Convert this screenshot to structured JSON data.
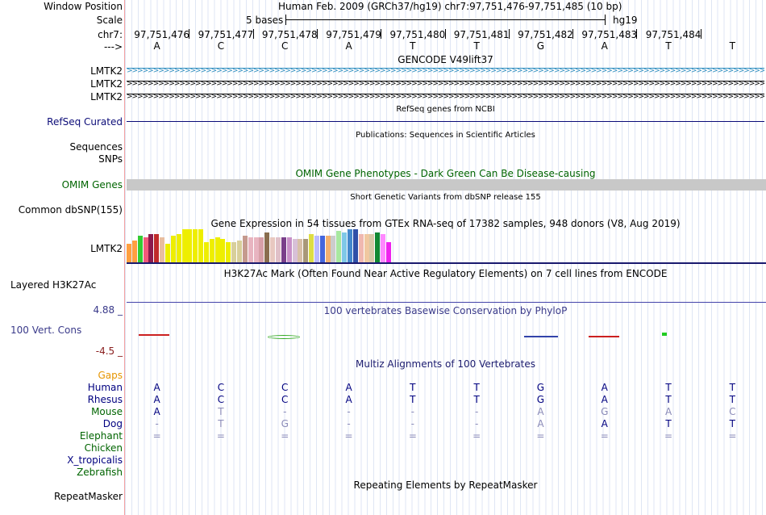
{
  "header": {
    "window_position_label": "Window Position",
    "window_position_value": "Human Feb. 2009 (GRCh37/hg19)   chr7:97,751,476-97,751,485 (10 bp)",
    "scale_label": "Scale",
    "scale_bases": "5 bases",
    "scale_assembly": "hg19",
    "chrom_label": "chr7:",
    "arrow_label": "--->",
    "positions": [
      "97,751,476",
      "97,751,477",
      "97,751,478",
      "97,751,479",
      "97,751,480",
      "97,751,481",
      "97,751,482",
      "97,751,483",
      "97,751,484"
    ],
    "bases": [
      "A",
      "C",
      "C",
      "A",
      "T",
      "T",
      "G",
      "A",
      "T",
      "T"
    ]
  },
  "tracks": {
    "gencode": {
      "title": "GENCODE V49lift37",
      "labels": [
        "LMTK2",
        "LMTK2",
        "LMTK2"
      ],
      "colors": [
        "#2b8cbe",
        "#000000",
        "#000000"
      ]
    },
    "refseq": {
      "title": "RefSeq genes from NCBI",
      "label": "RefSeq Curated"
    },
    "publications": {
      "title": "Publications: Sequences in Scientific Articles",
      "labels": [
        "Sequences",
        "SNPs"
      ]
    },
    "omim": {
      "title": "OMIM Gene Phenotypes - Dark Green Can Be Disease-causing",
      "label": "OMIM Genes"
    },
    "dbsnp": {
      "title": "Short Genetic Variants from dbSNP release 155",
      "label": "Common dbSNP(155)"
    },
    "gtex": {
      "title": "Gene Expression in 54 tissues from GTEx RNA-seq of 17382 samples, 948 donors (V8, Aug 2019)",
      "label": "LMTK2",
      "bars": [
        {
          "v": 0.55,
          "c": "#ff9f40"
        },
        {
          "v": 0.65,
          "c": "#ff9f40"
        },
        {
          "v": 0.8,
          "c": "#33cc33"
        },
        {
          "v": 0.75,
          "c": "#f25a7a"
        },
        {
          "v": 0.85,
          "c": "#8b1a4d"
        },
        {
          "v": 0.85,
          "c": "#c02a2a"
        },
        {
          "v": 0.75,
          "c": "#e8bea0"
        },
        {
          "v": 0.55,
          "c": "#eeee00"
        },
        {
          "v": 0.8,
          "c": "#eeee00"
        },
        {
          "v": 0.85,
          "c": "#eeee00"
        },
        {
          "v": 1.0,
          "c": "#eeee00"
        },
        {
          "v": 1.0,
          "c": "#eeee00"
        },
        {
          "v": 1.0,
          "c": "#eeee00"
        },
        {
          "v": 1.0,
          "c": "#eeee00"
        },
        {
          "v": 0.6,
          "c": "#eeee00"
        },
        {
          "v": 0.7,
          "c": "#eeee00"
        },
        {
          "v": 0.75,
          "c": "#eeee00"
        },
        {
          "v": 0.7,
          "c": "#eeee00"
        },
        {
          "v": 0.6,
          "c": "#eeee00"
        },
        {
          "v": 0.6,
          "c": "#d8cf9a"
        },
        {
          "v": 0.65,
          "c": "#d8cf9a"
        },
        {
          "v": 0.8,
          "c": "#c59a8e"
        },
        {
          "v": 0.75,
          "c": "#e8b4c0"
        },
        {
          "v": 0.75,
          "c": "#e8b4c0"
        },
        {
          "v": 0.75,
          "c": "#d8a0a8"
        },
        {
          "v": 0.9,
          "c": "#8a6e4e"
        },
        {
          "v": 0.75,
          "c": "#e8c8c0"
        },
        {
          "v": 0.75,
          "c": "#e0c0c8"
        },
        {
          "v": 0.75,
          "c": "#7a3f8a"
        },
        {
          "v": 0.75,
          "c": "#c890c8"
        },
        {
          "v": 0.7,
          "c": "#d8c0d8"
        },
        {
          "v": 0.7,
          "c": "#d8c0a8"
        },
        {
          "v": 0.7,
          "c": "#a89878"
        },
        {
          "v": 0.85,
          "c": "#dddd44"
        },
        {
          "v": 0.8,
          "c": "#bbbbff"
        },
        {
          "v": 0.8,
          "c": "#4466dd"
        },
        {
          "v": 0.8,
          "c": "#f2b070"
        },
        {
          "v": 0.8,
          "c": "#cccccc"
        },
        {
          "v": 0.95,
          "c": "#a8e8a0"
        },
        {
          "v": 0.9,
          "c": "#7fc8e8"
        },
        {
          "v": 1.0,
          "c": "#4488cc"
        },
        {
          "v": 1.0,
          "c": "#3050a8"
        },
        {
          "v": 0.85,
          "c": "#f0b8b0"
        },
        {
          "v": 0.85,
          "c": "#f0c8a0"
        },
        {
          "v": 0.85,
          "c": "#d8c8a8"
        },
        {
          "v": 0.9,
          "c": "#118833"
        },
        {
          "v": 0.85,
          "c": "#ff88ff"
        },
        {
          "v": 0.6,
          "c": "#ee22ee"
        }
      ]
    },
    "h3k27ac": {
      "title": "H3K27Ac Mark (Often Found Near Active Regulatory Elements) on 7 cell lines from ENCODE",
      "label": "Layered H3K27Ac"
    },
    "phylop": {
      "title": "100 vertebrates Basewise Conservation by PhyloP",
      "label": "100 Vert. Cons",
      "max": "4.88 _",
      "min": "-4.5 _"
    },
    "multiz": {
      "title": "Multiz Alignments of 100 Vertebrates",
      "gaps_label": "Gaps",
      "species": [
        {
          "name": "Human",
          "color": "#000080",
          "seq": [
            "A",
            "C",
            "C",
            "A",
            "T",
            "T",
            "G",
            "A",
            "T",
            "T"
          ]
        },
        {
          "name": "Rhesus",
          "color": "#000080",
          "seq": [
            "A",
            "C",
            "C",
            "A",
            "T",
            "T",
            "G",
            "A",
            "T",
            "T"
          ]
        },
        {
          "name": "Mouse",
          "color": "#006400",
          "seq": [
            "A",
            "T",
            "-",
            "-",
            "-",
            "-",
            "A",
            "G",
            "A",
            "C"
          ]
        },
        {
          "name": "Dog",
          "color": "#000080",
          "seq": [
            "-",
            "T",
            "G",
            "-",
            "-",
            "-",
            "A",
            "A",
            "T",
            "T"
          ]
        },
        {
          "name": "Elephant",
          "color": "#006400",
          "seq": [
            "=",
            "=",
            "=",
            "=",
            "=",
            "=",
            "=",
            "=",
            "=",
            "="
          ]
        },
        {
          "name": "Chicken",
          "color": "#006400",
          "seq": []
        },
        {
          "name": "X_tropicalis",
          "color": "#000080",
          "seq": []
        },
        {
          "name": "Zebrafish",
          "color": "#006400",
          "seq": []
        }
      ]
    },
    "repeatmasker": {
      "title": "Repeating Elements by RepeatMasker",
      "label": "RepeatMasker"
    }
  }
}
